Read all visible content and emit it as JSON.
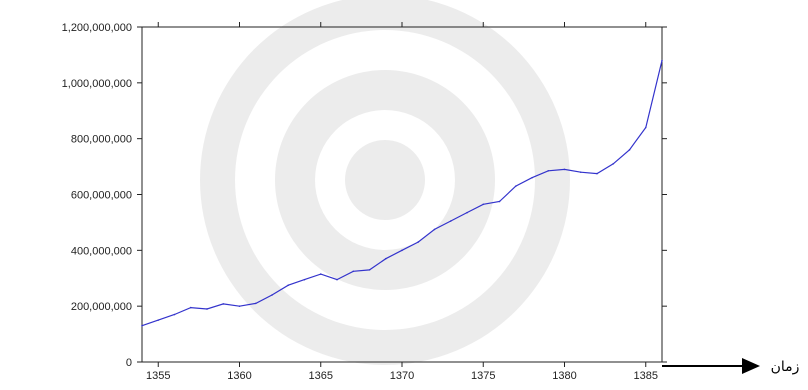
{
  "chart_data": {
    "type": "line",
    "title": "",
    "xlabel": "زمان",
    "ylabel": "",
    "x": [
      1354,
      1355,
      1356,
      1357,
      1358,
      1359,
      1360,
      1361,
      1362,
      1363,
      1364,
      1365,
      1366,
      1367,
      1368,
      1369,
      1370,
      1371,
      1372,
      1373,
      1374,
      1375,
      1376,
      1377,
      1378,
      1379,
      1380,
      1381,
      1382,
      1383,
      1384,
      1385,
      1386
    ],
    "series": [
      {
        "name": "",
        "color": "#3333cc",
        "values": [
          130000000,
          150000000,
          170000000,
          195000000,
          190000000,
          208000000,
          200000000,
          210000000,
          240000000,
          275000000,
          295000000,
          315000000,
          295000000,
          325000000,
          330000000,
          370000000,
          400000000,
          430000000,
          475000000,
          505000000,
          535000000,
          565000000,
          575000000,
          630000000,
          660000000,
          685000000,
          690000000,
          680000000,
          675000000,
          710000000,
          760000000,
          840000000,
          1080000000
        ]
      }
    ],
    "xlim": [
      1354,
      1386
    ],
    "ylim": [
      0,
      1200000000
    ],
    "yticks": [
      0,
      200000000,
      400000000,
      600000000,
      800000000,
      1000000000,
      1200000000
    ],
    "ytick_labels": [
      "0",
      "200,000,000",
      "400,000,000",
      "600,000,000",
      "800,000,000",
      "1,000,000,000",
      "1,200,000,000"
    ],
    "xticks": [
      1355,
      1360,
      1365,
      1370,
      1375,
      1380,
      1385
    ],
    "xtick_labels": [
      "1355",
      "1360",
      "1365",
      "1370",
      "1375",
      "1380",
      "1385"
    ],
    "grid": false,
    "legend": "none"
  }
}
